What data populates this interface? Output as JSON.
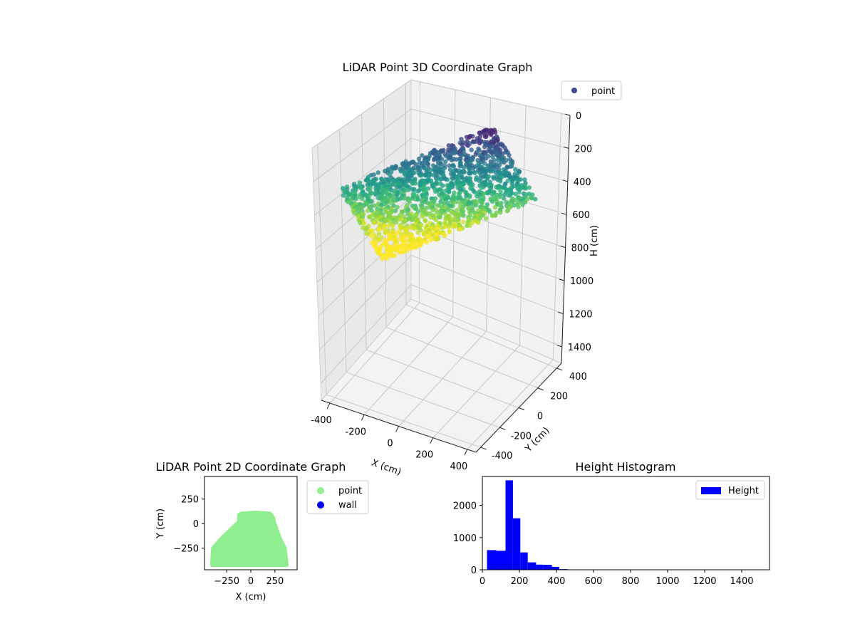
{
  "chart_data": [
    {
      "type": "scatter3d",
      "title": "LiDAR Point 3D Coordinate Graph",
      "xlabel": "X (cm)",
      "ylabel": "Y (cm)",
      "zlabel": "H (cm)",
      "x_ticks": [
        "-400",
        "-200",
        "0",
        "200",
        "400"
      ],
      "y_ticks": [
        "-400",
        "-200",
        "0",
        "200",
        "400"
      ],
      "z_ticks": [
        "0",
        "200",
        "400",
        "600",
        "800",
        "1000",
        "1200",
        "1400"
      ],
      "xlim": [
        -450,
        450
      ],
      "ylim": [
        -450,
        450
      ],
      "zlim": [
        1500,
        0
      ],
      "z_inverted": true,
      "colormap": "viridis",
      "legend": [
        {
          "name": "point",
          "color": "#3b4a8a",
          "marker": "circle"
        }
      ],
      "legend_position": "top-right",
      "grid": true
    },
    {
      "type": "scatter",
      "title": "LiDAR Point 2D Coordinate Graph",
      "xlabel": "X (cm)",
      "ylabel": "Y (cm)",
      "x_ticks": [
        "−250",
        "0",
        "250"
      ],
      "y_ticks": [
        "250",
        "0",
        "−250"
      ],
      "xlim": [
        -480,
        480
      ],
      "ylim": [
        -470,
        480
      ],
      "series": [
        {
          "name": "point",
          "color": "#90ee90"
        },
        {
          "name": "wall",
          "color": "#0000ee"
        }
      ],
      "legend_position": "outside-right"
    },
    {
      "type": "bar",
      "title": "Height Histogram",
      "x_ticks": [
        "0",
        "200",
        "400",
        "600",
        "800",
        "1000",
        "1200",
        "1400"
      ],
      "y_ticks": [
        "0",
        "1000",
        "2000"
      ],
      "xlim": [
        0,
        1550
      ],
      "ylim": [
        0,
        2900
      ],
      "bin_edges": [
        25,
        75,
        125,
        165,
        205,
        245,
        290,
        330,
        375,
        415,
        460
      ],
      "values": [
        610,
        590,
        2780,
        1600,
        540,
        230,
        160,
        155,
        90,
        20
      ],
      "series": [
        {
          "name": "Height",
          "color": "#0000ff"
        }
      ],
      "legend_position": "top-right"
    }
  ]
}
